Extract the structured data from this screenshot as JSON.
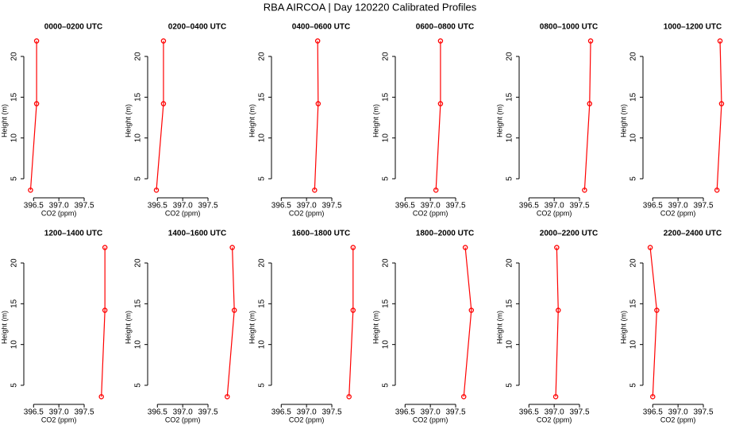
{
  "title": "RBA AIRCOA | Day 120220  Calibrated Profiles",
  "chart_data": [
    {
      "type": "line",
      "title": "0000–0200 UTC",
      "x_label": "CO2 (ppm)",
      "y_label": "Height (m)",
      "color": "#ff0000",
      "x": [
        396.44,
        396.56,
        396.56
      ],
      "values": [
        3.6,
        14.2,
        21.9
      ],
      "xlim": [
        396.37,
        398.08
      ],
      "ylim": [
        3.05,
        22.73
      ],
      "xticks": [
        396.5,
        {
          "value": 397,
          "label": "397.0"
        },
        397.5
      ],
      "yticks": [
        5,
        10,
        15,
        20
      ]
    },
    {
      "type": "line",
      "title": "0200–0400 UTC",
      "x_label": "CO2 (ppm)",
      "y_label": "Height (m)",
      "color": "#ff0000",
      "x": [
        396.48,
        396.62,
        396.62
      ],
      "values": [
        3.6,
        14.2,
        21.9
      ],
      "xlim": [
        396.37,
        398.08
      ],
      "ylim": [
        3.05,
        22.73
      ],
      "xticks": [
        396.5,
        {
          "value": 397,
          "label": "397.0"
        },
        397.5
      ],
      "yticks": [
        5,
        10,
        15,
        20
      ]
    },
    {
      "type": "line",
      "title": "0400–0600 UTC",
      "x_label": "CO2 (ppm)",
      "y_label": "Height (m)",
      "color": "#ff0000",
      "x": [
        397.16,
        397.23,
        397.22
      ],
      "values": [
        3.6,
        14.2,
        21.9
      ],
      "xlim": [
        396.37,
        398.08
      ],
      "ylim": [
        3.05,
        22.73
      ],
      "xticks": [
        396.5,
        {
          "value": 397,
          "label": "397.0"
        },
        397.5
      ],
      "yticks": [
        5,
        10,
        15,
        20
      ]
    },
    {
      "type": "line",
      "title": "0600–0800 UTC",
      "x_label": "CO2 (ppm)",
      "y_label": "Height (m)",
      "color": "#ff0000",
      "x": [
        397.11,
        397.2,
        397.2
      ],
      "values": [
        3.6,
        14.2,
        21.9
      ],
      "xlim": [
        396.37,
        398.08
      ],
      "ylim": [
        3.05,
        22.73
      ],
      "xticks": [
        396.5,
        {
          "value": 397,
          "label": "397.0"
        },
        397.5
      ],
      "yticks": [
        5,
        10,
        15,
        20
      ]
    },
    {
      "type": "line",
      "title": "0800–1000 UTC",
      "x_label": "CO2 (ppm)",
      "y_label": "Height (m)",
      "color": "#ff0000",
      "x": [
        397.6,
        397.7,
        397.72
      ],
      "values": [
        3.6,
        14.2,
        21.9
      ],
      "xlim": [
        396.37,
        398.08
      ],
      "ylim": [
        3.05,
        22.73
      ],
      "xticks": [
        396.5,
        {
          "value": 397,
          "label": "397.0"
        },
        397.5
      ],
      "yticks": [
        5,
        10,
        15,
        20
      ]
    },
    {
      "type": "line",
      "title": "1000–1200 UTC",
      "x_label": "CO2 (ppm)",
      "y_label": "Height (m)",
      "color": "#ff0000",
      "x": [
        397.77,
        397.86,
        397.83
      ],
      "values": [
        3.6,
        14.2,
        21.9
      ],
      "xlim": [
        396.37,
        398.08
      ],
      "ylim": [
        3.05,
        22.73
      ],
      "xticks": [
        396.5,
        {
          "value": 397,
          "label": "397.0"
        },
        397.5
      ],
      "yticks": [
        5,
        10,
        15,
        20
      ]
    },
    {
      "type": "line",
      "title": "1200–1400 UTC",
      "x_label": "CO2 (ppm)",
      "y_label": "Height (m)",
      "color": "#ff0000",
      "x": [
        397.84,
        397.91,
        397.91
      ],
      "values": [
        3.6,
        14.2,
        21.9
      ],
      "xlim": [
        396.37,
        398.08
      ],
      "ylim": [
        3.05,
        22.73
      ],
      "xticks": [
        396.5,
        {
          "value": 397,
          "label": "397.0"
        },
        397.5
      ],
      "yticks": [
        5,
        10,
        15,
        20
      ]
    },
    {
      "type": "line",
      "title": "1400–1600 UTC",
      "x_label": "CO2 (ppm)",
      "y_label": "Height (m)",
      "color": "#ff0000",
      "x": [
        397.88,
        398.02,
        397.98
      ],
      "values": [
        3.6,
        14.2,
        21.9
      ],
      "xlim": [
        396.37,
        398.08
      ],
      "ylim": [
        3.05,
        22.73
      ],
      "xticks": [
        396.5,
        {
          "value": 397,
          "label": "397.0"
        },
        397.5
      ],
      "yticks": [
        5,
        10,
        15,
        20
      ]
    },
    {
      "type": "line",
      "title": "1600–1800 UTC",
      "x_label": "CO2 (ppm)",
      "y_label": "Height (m)",
      "color": "#ff0000",
      "x": [
        397.84,
        397.92,
        397.92
      ],
      "values": [
        3.6,
        14.2,
        21.9
      ],
      "xlim": [
        396.37,
        398.08
      ],
      "ylim": [
        3.05,
        22.73
      ],
      "xticks": [
        396.5,
        {
          "value": 397,
          "label": "397.0"
        },
        397.5
      ],
      "yticks": [
        5,
        10,
        15,
        20
      ]
    },
    {
      "type": "line",
      "title": "1800–2000 UTC",
      "x_label": "CO2 (ppm)",
      "y_label": "Height (m)",
      "color": "#ff0000",
      "x": [
        397.66,
        397.81,
        397.69
      ],
      "values": [
        3.6,
        14.2,
        21.9
      ],
      "xlim": [
        396.37,
        398.08
      ],
      "ylim": [
        3.05,
        22.73
      ],
      "xticks": [
        396.5,
        {
          "value": 397,
          "label": "397.0"
        },
        397.5
      ],
      "yticks": [
        5,
        10,
        15,
        20
      ]
    },
    {
      "type": "line",
      "title": "2000–2200 UTC",
      "x_label": "CO2 (ppm)",
      "y_label": "Height (m)",
      "color": "#ff0000",
      "x": [
        397.03,
        397.08,
        397.05
      ],
      "values": [
        3.6,
        14.2,
        21.9
      ],
      "xlim": [
        396.37,
        398.08
      ],
      "ylim": [
        3.05,
        22.73
      ],
      "xticks": [
        396.5,
        {
          "value": 397,
          "label": "397.0"
        },
        397.5
      ],
      "yticks": [
        5,
        10,
        15,
        20
      ]
    },
    {
      "type": "line",
      "title": "2200–2400 UTC",
      "x_label": "CO2 (ppm)",
      "y_label": "Height (m)",
      "color": "#ff0000",
      "x": [
        396.5,
        396.58,
        396.45
      ],
      "values": [
        3.6,
        14.2,
        21.9
      ],
      "xlim": [
        396.37,
        398.08
      ],
      "ylim": [
        3.05,
        22.73
      ],
      "xticks": [
        396.5,
        {
          "value": 397,
          "label": "397.0"
        },
        397.5
      ],
      "yticks": [
        5,
        10,
        15,
        20
      ]
    }
  ]
}
